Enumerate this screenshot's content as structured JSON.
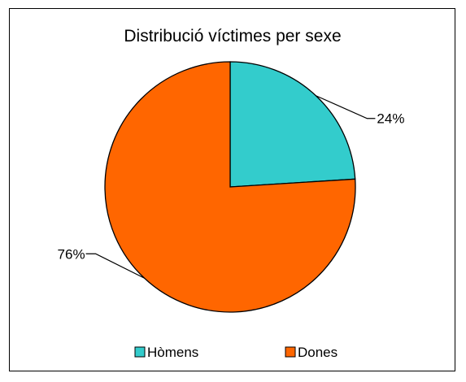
{
  "chart_data": {
    "type": "pie",
    "title": "Distribució víctimes per sexe",
    "slices": [
      {
        "label": "Hòmens",
        "value": 24,
        "display": "24%",
        "color": "#33cccc"
      },
      {
        "label": "Dones",
        "value": 76,
        "display": "76%",
        "color": "#ff6600"
      }
    ],
    "legend_position": "bottom",
    "start": "12 o'clock, clockwise"
  }
}
